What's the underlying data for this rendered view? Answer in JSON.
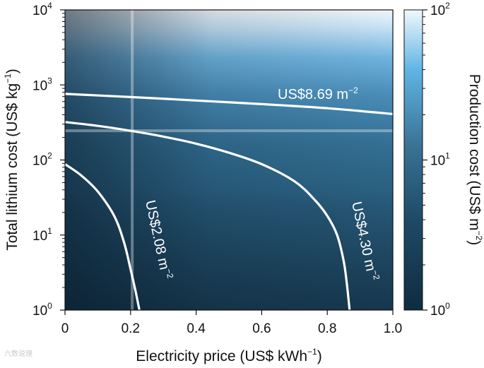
{
  "chart_data": {
    "type": "heatmap",
    "xlabel": "Electricity price (US$ kWh",
    "xlabel_sup": "−1",
    "xlabel_end": ")",
    "ylabel": "Total lithium cost (US$ kg",
    "ylabel_sup": "−1",
    "ylabel_end": ")",
    "xlim": [
      0,
      1.0
    ],
    "ylim": [
      1,
      10000
    ],
    "y_scale": "log",
    "x_ticks": [
      "0",
      "0.2",
      "0.4",
      "0.6",
      "0.8",
      "1.0"
    ],
    "y_ticks": [
      {
        "base": "10",
        "exp": "0"
      },
      {
        "base": "10",
        "exp": "1"
      },
      {
        "base": "10",
        "exp": "2"
      },
      {
        "base": "10",
        "exp": "3"
      },
      {
        "base": "10",
        "exp": "4"
      }
    ],
    "colorbar": {
      "label": "Production cost (US$ m",
      "label_sup": "−2",
      "label_end": ")",
      "scale": "log",
      "range": [
        1,
        100
      ],
      "ticks": [
        {
          "base": "10",
          "exp": "0"
        },
        {
          "base": "10",
          "exp": "1"
        },
        {
          "base": "10",
          "exp": "2"
        }
      ],
      "colors": [
        "#0f2c40",
        "#1e4a66",
        "#3a7395",
        "#5fb4e4",
        "#f2f8fc"
      ]
    },
    "contours": [
      {
        "label": "US$2.08 m",
        "label_sup": "−2",
        "points": [
          [
            0,
            88
          ],
          [
            0.05,
            62
          ],
          [
            0.1,
            38
          ],
          [
            0.15,
            18
          ],
          [
            0.18,
            8
          ],
          [
            0.2,
            3.5
          ],
          [
            0.215,
            1.8
          ],
          [
            0.227,
            1.0
          ]
        ]
      },
      {
        "label": "US$4.30 m",
        "label_sup": "−2",
        "points": [
          [
            0,
            320
          ],
          [
            0.1,
            285
          ],
          [
            0.2,
            245
          ],
          [
            0.3,
            205
          ],
          [
            0.4,
            165
          ],
          [
            0.5,
            125
          ],
          [
            0.6,
            88
          ],
          [
            0.7,
            52
          ],
          [
            0.76,
            30
          ],
          [
            0.8,
            18
          ],
          [
            0.83,
            10
          ],
          [
            0.85,
            4.5
          ],
          [
            0.86,
            2.2
          ],
          [
            0.868,
            1.0
          ]
        ]
      },
      {
        "label": "US$8.69 m",
        "label_sup": "−2",
        "points": [
          [
            0,
            760
          ],
          [
            0.2,
            690
          ],
          [
            0.4,
            620
          ],
          [
            0.6,
            555
          ],
          [
            0.8,
            490
          ],
          [
            1.0,
            410
          ]
        ]
      }
    ],
    "reference_lines": {
      "x": 0.205,
      "y": 245
    },
    "watermark": "六数说理"
  }
}
